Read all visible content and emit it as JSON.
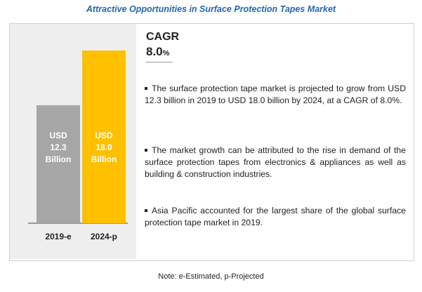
{
  "title": "Attractive Opportunities in Surface Protection Tapes Market",
  "cagr": {
    "label": "CAGR",
    "value": "8.0",
    "unit": "%"
  },
  "bullets": [
    "The surface protection tape market is projected to grow from USD 12.3 billion in 2019 to USD 18.0 billion by 2024, at a CAGR of 8.0%.",
    "The market growth can be attributed to the rise in demand of the surface protection tapes from electronics & appliances as well as building & construction industries.",
    "Asia Pacific accounted for the largest share of the global surface protection tape market in 2019."
  ],
  "note": "Note: e-Estimated, p-Projected",
  "chart_data": {
    "type": "bar",
    "categories": [
      "2019-e",
      "2024-p"
    ],
    "values": [
      12.3,
      18.0
    ],
    "bar_labels": [
      [
        "USD",
        "12.3",
        "Billion"
      ],
      [
        "USD",
        "18.0",
        "Billion"
      ]
    ],
    "colors": [
      "#a6a6a6",
      "#ffc000"
    ],
    "label_color": "#ffffff",
    "ylim": [
      0,
      18.0
    ],
    "grid": false,
    "title": "",
    "xlabel": "",
    "ylabel": ""
  }
}
